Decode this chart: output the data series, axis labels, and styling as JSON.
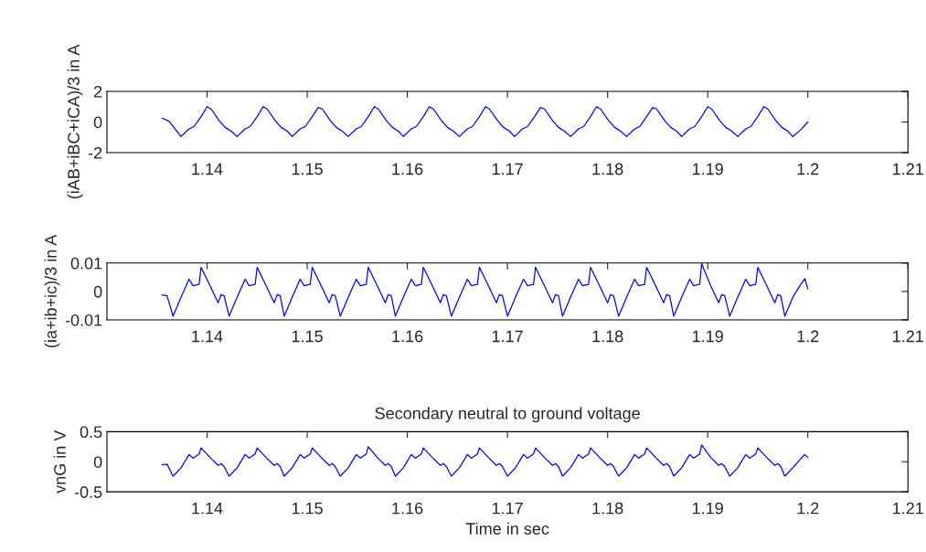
{
  "chart_data": [
    {
      "type": "line",
      "ylabel": "(iAB+iBC+iCA)/3 in A",
      "xlim": [
        1.13,
        1.21
      ],
      "xticks": [
        1.14,
        1.15,
        1.16,
        1.17,
        1.18,
        1.19,
        1.2,
        1.21
      ],
      "ylim": [
        -2,
        2
      ],
      "yticks": [
        -2,
        0,
        2
      ],
      "grid": false,
      "series": [
        {
          "color": "#0000ff",
          "x": [
            1.1355,
            1.1362,
            1.1374,
            1.1382,
            1.1387,
            1.1394,
            1.14,
            1.1404,
            1.1412,
            1.1418,
            1.1424,
            1.143,
            1.1438,
            1.1443,
            1.145,
            1.1456,
            1.146,
            1.1468,
            1.1474,
            1.148,
            1.1485,
            1.1493,
            1.1498,
            1.1505,
            1.1511,
            1.1515,
            1.1523,
            1.1529,
            1.1535,
            1.1541,
            1.1549,
            1.1554,
            1.1561,
            1.1567,
            1.1571,
            1.1579,
            1.1585,
            1.1591,
            1.1596,
            1.1604,
            1.1609,
            1.1616,
            1.1622,
            1.1626,
            1.1634,
            1.164,
            1.1646,
            1.1652,
            1.166,
            1.1665,
            1.1672,
            1.1678,
            1.1682,
            1.169,
            1.1696,
            1.1702,
            1.1707,
            1.1715,
            1.172,
            1.1727,
            1.1733,
            1.1737,
            1.1745,
            1.1751,
            1.1757,
            1.1763,
            1.1771,
            1.1776,
            1.1783,
            1.1789,
            1.1793,
            1.1801,
            1.1807,
            1.1813,
            1.1819,
            1.1827,
            1.1832,
            1.1839,
            1.1845,
            1.1849,
            1.1857,
            1.1863,
            1.1869,
            1.1874,
            1.1882,
            1.1887,
            1.1894,
            1.19,
            1.1904,
            1.1912,
            1.1918,
            1.1924,
            1.193,
            1.1938,
            1.1943,
            1.195,
            1.1956,
            1.196,
            1.1968,
            1.1974,
            1.198,
            1.1985,
            1.1993,
            1.2
          ],
          "values": [
            0.25,
            0.05,
            -0.95,
            -0.45,
            -0.3,
            0.35,
            1.0,
            0.85,
            0.1,
            -0.35,
            -0.6,
            -0.95,
            -0.45,
            -0.3,
            0.35,
            1.0,
            0.85,
            0.1,
            -0.35,
            -0.6,
            -0.95,
            -0.45,
            -0.3,
            0.35,
            0.95,
            0.85,
            0.1,
            -0.35,
            -0.6,
            -0.95,
            -0.45,
            -0.3,
            0.35,
            1.0,
            0.85,
            0.1,
            -0.35,
            -0.6,
            -0.95,
            -0.45,
            -0.3,
            0.35,
            1.0,
            0.85,
            0.1,
            -0.35,
            -0.6,
            -0.95,
            -0.45,
            -0.3,
            0.35,
            1.0,
            0.85,
            0.1,
            -0.35,
            -0.6,
            -0.95,
            -0.45,
            -0.3,
            0.35,
            0.95,
            0.85,
            0.1,
            -0.35,
            -0.6,
            -0.95,
            -0.45,
            -0.3,
            0.35,
            1.0,
            0.85,
            0.1,
            -0.35,
            -0.6,
            -0.95,
            -0.45,
            -0.3,
            0.35,
            0.95,
            0.85,
            0.1,
            -0.35,
            -0.6,
            -0.95,
            -0.45,
            -0.3,
            0.35,
            1.0,
            0.85,
            0.1,
            -0.35,
            -0.6,
            -0.95,
            -0.45,
            -0.3,
            0.35,
            1.0,
            0.85,
            0.1,
            -0.35,
            -0.6,
            -0.95,
            -0.5,
            0.0
          ]
        }
      ]
    },
    {
      "type": "line",
      "ylabel": "(ia+ib+ic)/3 in A",
      "xlim": [
        1.13,
        1.21
      ],
      "xticks": [
        1.14,
        1.15,
        1.16,
        1.17,
        1.18,
        1.19,
        1.2,
        1.21
      ],
      "ylim": [
        -0.01,
        0.01
      ],
      "yticks": [
        -0.01,
        0,
        0.01
      ],
      "grid": false,
      "series": [
        {
          "color": "#0000ff",
          "x": [
            1.1355,
            1.136,
            1.1366,
            1.1374,
            1.1382,
            1.1386,
            1.1392,
            1.1394,
            1.1403,
            1.1411,
            1.1414,
            1.1417,
            1.1422,
            1.143,
            1.1438,
            1.1442,
            1.1448,
            1.145,
            1.1459,
            1.1467,
            1.147,
            1.1473,
            1.1477,
            1.1485,
            1.1493,
            1.1497,
            1.1503,
            1.1505,
            1.1514,
            1.1522,
            1.1525,
            1.1528,
            1.1533,
            1.1541,
            1.1549,
            1.1553,
            1.1559,
            1.1561,
            1.157,
            1.1578,
            1.1581,
            1.1584,
            1.1588,
            1.1596,
            1.1604,
            1.1608,
            1.1614,
            1.1616,
            1.1625,
            1.1633,
            1.1636,
            1.1639,
            1.1644,
            1.1652,
            1.166,
            1.1664,
            1.167,
            1.1672,
            1.1681,
            1.1689,
            1.1692,
            1.1695,
            1.17,
            1.1708,
            1.1716,
            1.172,
            1.1726,
            1.1728,
            1.1737,
            1.1745,
            1.1748,
            1.1751,
            1.1755,
            1.1763,
            1.1771,
            1.1775,
            1.1781,
            1.1783,
            1.1792,
            1.18,
            1.1803,
            1.1806,
            1.1811,
            1.1819,
            1.1827,
            1.1831,
            1.1837,
            1.1839,
            1.1848,
            1.1856,
            1.1859,
            1.1862,
            1.1866,
            1.1874,
            1.1882,
            1.1886,
            1.1892,
            1.1894,
            1.1903,
            1.1911,
            1.1914,
            1.1917,
            1.1922,
            1.193,
            1.1938,
            1.1942,
            1.1948,
            1.195,
            1.1959,
            1.1967,
            1.197,
            1.1973,
            1.1977,
            1.1985,
            1.1993,
            1.1997,
            1.2
          ],
          "values": [
            -0.0013,
            -0.0015,
            -0.0087,
            -0.002,
            0.0043,
            0.002,
            0.0025,
            0.0085,
            0.002,
            -0.004,
            -0.0011,
            -0.0015,
            -0.0087,
            -0.002,
            0.0043,
            0.002,
            0.0025,
            0.0085,
            0.002,
            -0.004,
            -0.0011,
            -0.0015,
            -0.0087,
            -0.002,
            0.0043,
            0.002,
            0.0025,
            0.0085,
            0.002,
            -0.004,
            -0.0011,
            -0.0015,
            -0.0087,
            -0.002,
            0.0043,
            0.002,
            0.0025,
            0.0085,
            0.002,
            -0.004,
            -0.0011,
            -0.0015,
            -0.0087,
            -0.002,
            0.0043,
            0.002,
            0.0025,
            0.0085,
            0.002,
            -0.004,
            -0.0011,
            -0.0015,
            -0.0087,
            -0.002,
            0.0043,
            0.002,
            0.0025,
            0.0085,
            0.002,
            -0.004,
            -0.0011,
            -0.0015,
            -0.0087,
            -0.002,
            0.0043,
            0.002,
            0.0025,
            0.0085,
            0.002,
            -0.004,
            -0.0011,
            -0.0015,
            -0.0087,
            -0.002,
            0.0043,
            0.002,
            0.0025,
            0.0085,
            0.002,
            -0.004,
            -0.0011,
            -0.0015,
            -0.0087,
            -0.002,
            0.0043,
            0.002,
            0.0025,
            0.0085,
            0.002,
            -0.004,
            -0.0011,
            -0.0015,
            -0.0087,
            -0.002,
            0.0043,
            0.002,
            0.0025,
            0.0098,
            0.002,
            -0.004,
            -0.0011,
            -0.0015,
            -0.0087,
            -0.002,
            0.0043,
            0.002,
            0.0025,
            0.0085,
            0.002,
            -0.004,
            -0.0011,
            -0.0015,
            -0.0087,
            -0.002,
            0.0025,
            0.0045,
            0.0009
          ]
        }
      ]
    },
    {
      "type": "line",
      "title": "Secondary neutral to ground voltage",
      "xlabel": "Time in sec",
      "ylabel": "vnG in V",
      "xlim": [
        1.13,
        1.21
      ],
      "xticks": [
        1.14,
        1.15,
        1.16,
        1.17,
        1.18,
        1.19,
        1.2,
        1.21
      ],
      "ylim": [
        -0.5,
        0.5
      ],
      "yticks": [
        -0.5,
        0,
        0.5
      ],
      "grid": false,
      "series": [
        {
          "color": "#0000ff",
          "x": [
            1.1355,
            1.136,
            1.1366,
            1.1374,
            1.1382,
            1.1386,
            1.1392,
            1.1394,
            1.1403,
            1.1411,
            1.1414,
            1.1417,
            1.1422,
            1.143,
            1.1438,
            1.1442,
            1.1448,
            1.145,
            1.1459,
            1.1467,
            1.147,
            1.1473,
            1.1477,
            1.1485,
            1.1493,
            1.1497,
            1.1503,
            1.1505,
            1.1514,
            1.1522,
            1.1525,
            1.1528,
            1.1533,
            1.1541,
            1.1549,
            1.1553,
            1.1559,
            1.1561,
            1.157,
            1.1578,
            1.1581,
            1.1584,
            1.1588,
            1.1596,
            1.1604,
            1.1608,
            1.1614,
            1.1616,
            1.1625,
            1.1633,
            1.1636,
            1.1639,
            1.1644,
            1.1652,
            1.166,
            1.1664,
            1.167,
            1.1672,
            1.1681,
            1.1689,
            1.1692,
            1.1695,
            1.17,
            1.1708,
            1.1716,
            1.172,
            1.1726,
            1.1728,
            1.1737,
            1.1745,
            1.1748,
            1.1751,
            1.1755,
            1.1763,
            1.1771,
            1.1775,
            1.1781,
            1.1783,
            1.1792,
            1.18,
            1.1803,
            1.1806,
            1.1811,
            1.1819,
            1.1827,
            1.1831,
            1.1837,
            1.1839,
            1.1848,
            1.1856,
            1.1859,
            1.1862,
            1.1866,
            1.1874,
            1.1882,
            1.1886,
            1.1892,
            1.1894,
            1.1903,
            1.1911,
            1.1914,
            1.1917,
            1.1922,
            1.193,
            1.1938,
            1.1942,
            1.1948,
            1.195,
            1.1959,
            1.1967,
            1.197,
            1.1973,
            1.1977,
            1.1985,
            1.1993,
            1.1997,
            1.2
          ],
          "values": [
            -0.05,
            -0.04,
            -0.24,
            -0.1,
            0.12,
            0.06,
            0.13,
            0.23,
            0.07,
            -0.06,
            -0.03,
            -0.08,
            -0.24,
            -0.1,
            0.12,
            0.06,
            0.13,
            0.23,
            0.07,
            -0.06,
            -0.03,
            -0.08,
            -0.24,
            -0.1,
            0.12,
            0.06,
            0.13,
            0.23,
            0.07,
            -0.06,
            -0.03,
            -0.08,
            -0.24,
            -0.1,
            0.12,
            0.06,
            0.13,
            0.25,
            0.07,
            -0.06,
            -0.03,
            -0.08,
            -0.24,
            -0.1,
            0.12,
            0.06,
            0.13,
            0.23,
            0.07,
            -0.06,
            -0.03,
            -0.08,
            -0.24,
            -0.1,
            0.12,
            0.06,
            0.13,
            0.23,
            0.07,
            -0.06,
            -0.03,
            -0.08,
            -0.24,
            -0.1,
            0.12,
            0.06,
            0.13,
            0.23,
            0.07,
            -0.06,
            -0.03,
            -0.08,
            -0.24,
            -0.1,
            0.12,
            0.06,
            0.13,
            0.23,
            0.07,
            -0.06,
            -0.03,
            -0.08,
            -0.24,
            -0.1,
            0.12,
            0.06,
            0.13,
            0.23,
            0.07,
            -0.06,
            -0.03,
            -0.08,
            -0.24,
            -0.1,
            0.12,
            0.06,
            0.13,
            0.28,
            0.07,
            -0.06,
            -0.03,
            -0.08,
            -0.24,
            -0.1,
            0.12,
            0.06,
            0.13,
            0.23,
            0.07,
            -0.06,
            -0.03,
            -0.08,
            -0.24,
            -0.1,
            0.05,
            0.12,
            0.07
          ]
        }
      ]
    }
  ]
}
